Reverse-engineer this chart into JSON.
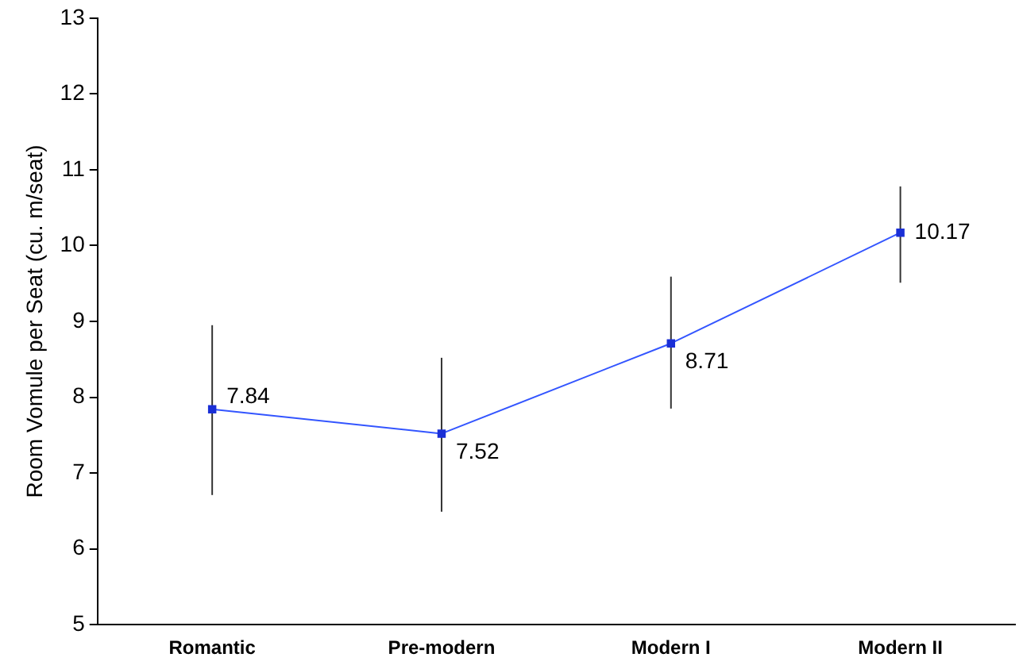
{
  "chart_data": {
    "type": "line",
    "ylabel": "Room Vomule per Seat (cu. m/seat)",
    "categories": [
      "Romantic",
      "Pre-modern",
      "Modern I",
      "Modern II"
    ],
    "series": [
      {
        "color": "#3355ff",
        "values": [
          7.84,
          7.52,
          8.71,
          10.17
        ],
        "errors": [
          [
            6.71,
            8.95
          ],
          [
            6.49,
            8.52
          ],
          [
            7.85,
            9.59
          ],
          [
            9.51,
            10.78
          ]
        ]
      }
    ],
    "ylim": [
      5,
      13
    ],
    "yticks": [
      5,
      6,
      7,
      8,
      9,
      10,
      11,
      12,
      13
    ],
    "grid": false,
    "legend": false,
    "marker": "square",
    "line_style": "solid",
    "data_labels": true
  }
}
